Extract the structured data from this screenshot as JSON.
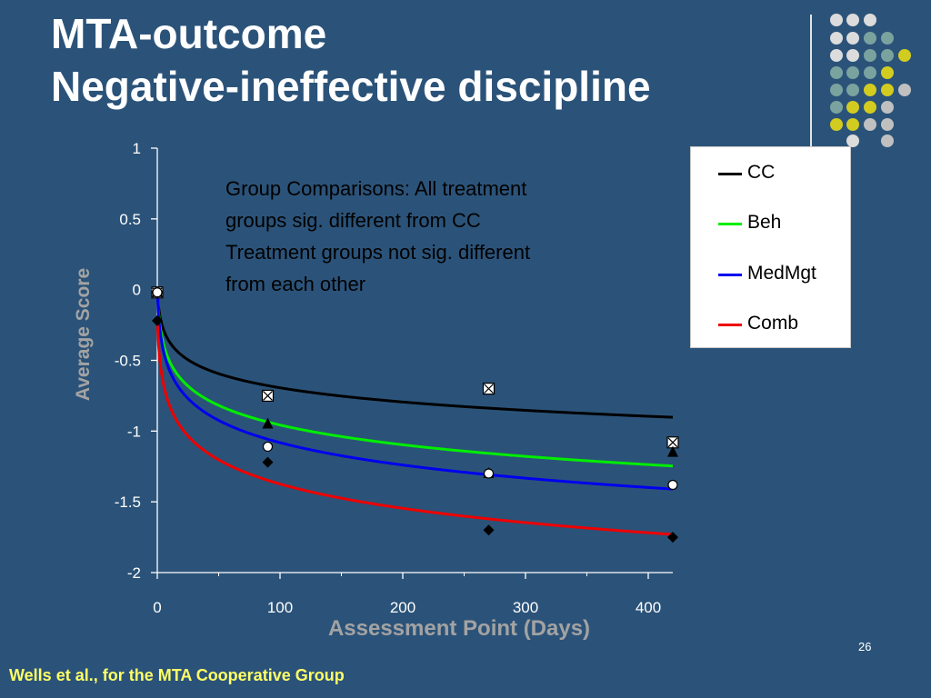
{
  "slide": {
    "title_line1": "MTA-outcome",
    "title_line2": "Negative-ineffective discipline",
    "slide_number": "26",
    "footer": "Wells et al., for the MTA Cooperative Group"
  },
  "decoration": {
    "dot_colors": [
      "#dcdcdc",
      "#7aa39f",
      "#d2cc20",
      "#c0c0c0"
    ]
  },
  "chart_data": {
    "type": "line",
    "xlabel": "Assessment Point (Days)",
    "ylabel": "Average Score",
    "xlim": [
      0,
      420
    ],
    "ylim": [
      -2,
      1
    ],
    "x_ticks": [
      "0",
      "100",
      "200",
      "300",
      "400"
    ],
    "y_ticks": [
      "1",
      "0.5",
      "0",
      "-0.5",
      "-1",
      "-1.5",
      "-2"
    ],
    "grid": false,
    "legend_position": "top-right",
    "annotation_lines": [
      "Group Comparisons:  All treatment",
      "groups sig. different from CC",
      "Treatment groups not sig. different",
      "from each other"
    ],
    "series": [
      {
        "name": "CC",
        "color": "#000000",
        "marker": "box-x",
        "fit_start": -0.02,
        "fit_coef": 0.146,
        "observed": [
          [
            0,
            -0.02
          ],
          [
            90,
            -0.75
          ],
          [
            270,
            -0.7
          ],
          [
            420,
            -1.08
          ]
        ]
      },
      {
        "name": "Beh",
        "color": "#00ee00",
        "marker": "triangle",
        "fit_start": -0.02,
        "fit_coef": 0.203,
        "observed": [
          [
            0,
            -0.02
          ],
          [
            90,
            -0.95
          ],
          [
            270,
            -1.3
          ],
          [
            420,
            -1.15
          ]
        ]
      },
      {
        "name": "MedMgt",
        "color": "#0000ee",
        "marker": "circle",
        "fit_start": -0.02,
        "fit_coef": 0.23,
        "observed": [
          [
            0,
            -0.02
          ],
          [
            90,
            -1.11
          ],
          [
            270,
            -1.3
          ],
          [
            420,
            -1.38
          ]
        ]
      },
      {
        "name": "Comb",
        "color": "#ee0000",
        "marker": "diamond",
        "fit_start": -0.22,
        "fit_coef": 0.25,
        "observed": [
          [
            0,
            -0.22
          ],
          [
            90,
            -1.22
          ],
          [
            270,
            -1.7
          ],
          [
            420,
            -1.75
          ]
        ]
      }
    ]
  }
}
